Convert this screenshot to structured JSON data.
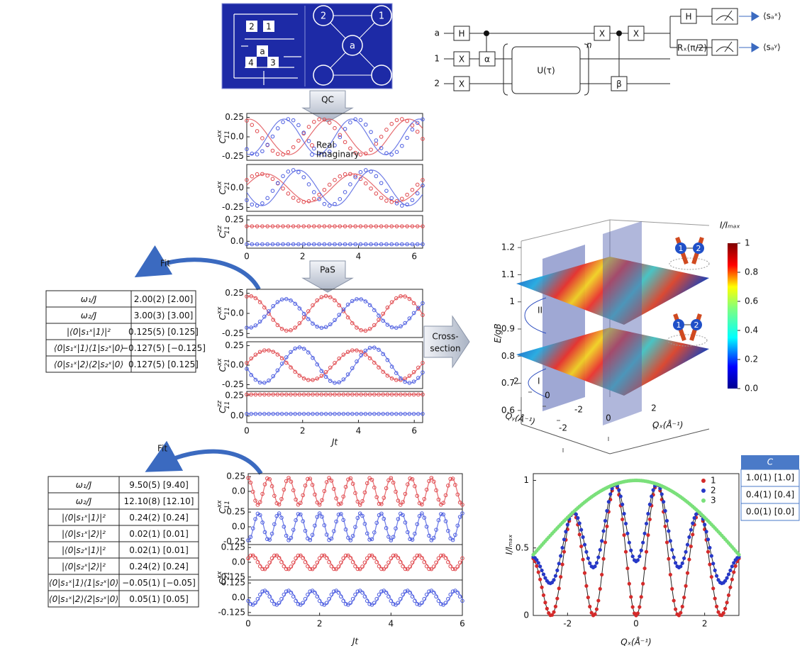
{
  "chip": {
    "labels": [
      "2",
      "1",
      "a",
      "4",
      "3"
    ],
    "graph_nodes": [
      "2",
      "1",
      "a"
    ]
  },
  "circuit": {
    "qubits": [
      "a",
      "1",
      "2"
    ],
    "h": "H",
    "x": "X",
    "alpha": "α",
    "u": "U(τ)",
    "n": "n",
    "beta": "β",
    "rx": "Rₓ(π/2)",
    "outputs": [
      "⟨sₐˣ⟩",
      "⟨sₐʸ⟩"
    ]
  },
  "arrows": {
    "qc": "QC",
    "pas": "PaS",
    "cross": [
      "Cross-",
      "section"
    ],
    "fit1": "Fit",
    "fit2": "Fit"
  },
  "panel_a": {
    "xlim": [
      0,
      6.3
    ],
    "xticks": [
      0,
      2,
      4,
      6
    ],
    "legend": [
      "Real",
      "Imaginary"
    ],
    "plots": [
      {
        "ylabel": {
          "base": "C",
          "sup": "xx",
          "sub": "11"
        },
        "ylim": [
          -0.3,
          0.3
        ],
        "yticks": [
          0.25,
          {
            "value": 0,
            "label": "0.0"
          },
          -0.25
        ]
      },
      {
        "ylabel": {
          "base": "C",
          "sup": "xx",
          "sub": "21"
        },
        "ylim": [
          -0.3,
          0.3
        ],
        "yticks": [
          {
            "value": 0,
            "label": "0.0"
          },
          -0.25
        ]
      },
      {
        "ylabel": {
          "base": "C",
          "sup": "zz",
          "sub": "11"
        },
        "ylim": [
          -0.08,
          0.3
        ],
        "yticks": [
          0.25,
          {
            "value": 0,
            "label": "0.0"
          }
        ]
      }
    ]
  },
  "panel_b": {
    "xlim": [
      0,
      6.3
    ],
    "xticks": [
      0,
      2,
      4,
      6
    ],
    "xlabel": "Jt",
    "plots": [
      {
        "ylabel": {
          "base": "C",
          "sup": "xx",
          "sub": "11"
        },
        "ylim": [
          -0.3,
          0.3
        ],
        "yticks": [
          0.25,
          {
            "value": 0,
            "label": "0.0"
          },
          -0.25
        ]
      },
      {
        "ylabel": {
          "base": "C",
          "sup": "xx",
          "sub": "21"
        },
        "ylim": [
          -0.3,
          0.3
        ],
        "yticks": [
          0.25,
          {
            "value": 0,
            "label": "0.0"
          },
          -0.25
        ]
      },
      {
        "ylabel": {
          "base": "C",
          "sup": "zz",
          "sub": "11"
        },
        "ylim": [
          -0.08,
          0.3
        ],
        "yticks": [
          0.25,
          {
            "value": 0,
            "label": "0.0"
          }
        ]
      }
    ]
  },
  "panel_c": {
    "xlim": [
      0,
      6
    ],
    "xticks": [
      0,
      2,
      4,
      6
    ],
    "xlabel": "Jt",
    "plots": [
      {
        "ylim": [
          -0.3,
          0.3
        ],
        "yticks": [
          0.25,
          {
            "value": 0,
            "label": "0.0"
          }
        ]
      },
      {
        "ylim": [
          -0.3,
          0.3
        ],
        "yticks": [
          0.25,
          {
            "value": 0,
            "label": "0.0"
          },
          -0.25
        ]
      },
      {
        "ylim": [
          -0.15,
          0.15
        ],
        "yticks": [
          0.125,
          {
            "value": 0,
            "label": "0.0"
          },
          -0.125
        ]
      },
      {
        "ylim": [
          -0.15,
          0.15
        ],
        "yticks": [
          0.125,
          {
            "value": 0,
            "label": "0.0"
          },
          -0.125
        ]
      }
    ],
    "ylabels": [
      {
        "base": "C",
        "sup": "xx",
        "sub": "11"
      },
      {
        "base": "C",
        "sup": "xx",
        "sub": "21"
      }
    ]
  },
  "table_1": {
    "rows": [
      [
        "ω₁/J",
        "2.00(2) [2.00]"
      ],
      [
        "ω₂/J",
        "3.00(3) [3.00]"
      ],
      [
        "|⟨0|s₁ˣ|1⟩|²",
        "0.125(5) [0.125]"
      ],
      [
        "⟨0|s₁ˣ|1⟩⟨1|s₂ˣ|0⟩",
        "−0.127(5) [−0.125]"
      ],
      [
        "⟨0|s₁ˣ|2⟩⟨2|s₂ˣ|0⟩",
        "0.127(5) [0.125]"
      ]
    ]
  },
  "table_2": {
    "rows": [
      [
        "ω₁/J",
        "9.50(5) [9.40]"
      ],
      [
        "ω₂/J",
        "12.10(8) [12.10]"
      ],
      [
        "|⟨0|s₁ˣ|1⟩|²",
        "0.24(2) [0.24]"
      ],
      [
        "|⟨0|s₁ˣ|2⟩|²",
        "0.02(1) [0.01]"
      ],
      [
        "|⟨0|s₂ˣ|1⟩|²",
        "0.02(1) [0.01]"
      ],
      [
        "|⟨0|s₂ˣ|2⟩|²",
        "0.24(2) [0.24]"
      ],
      [
        "⟨0|s₁ˣ|1⟩⟨1|s₂ˣ|0⟩",
        "−0.05(1) [−0.05]"
      ],
      [
        "⟨0|s₁ˣ|2⟩⟨2|s₂ˣ|0⟩",
        "0.05(1) [0.05]"
      ]
    ]
  },
  "panel_3d": {
    "zlabel": "E/gB",
    "zlim": [
      0.55,
      1.25
    ],
    "zticks": [
      1.2,
      1.1,
      1,
      0.9,
      0.8,
      0.7,
      0.6
    ],
    "markers": [
      "II",
      "I"
    ],
    "qx_label": "Qₓ(Å⁻¹)",
    "qx_ticks": [
      -2,
      0,
      2
    ],
    "qy_label": "Qᵧ(Å⁻¹)",
    "qy_ticks": [
      2,
      0,
      -2
    ],
    "colorbar": {
      "label": "I/Iₘₐₓ",
      "lim": [
        0,
        1
      ],
      "ticks": [
        1,
        0.8,
        0.6,
        0.4,
        0.2,
        {
          "value": 0,
          "label": "0.0"
        }
      ]
    },
    "spin_labels": [
      "1",
      "2",
      "1",
      "2"
    ]
  },
  "panel_d": {
    "xlabel": "Qₓ(Å⁻¹)",
    "ylabel": "I/Iₘₐₓ",
    "xlim": [
      -3,
      3
    ],
    "ylim": [
      0,
      1.05
    ],
    "xticks": [
      -2,
      0,
      2
    ],
    "yticks": [
      0,
      0.5,
      1
    ],
    "legend": [
      {
        "name": "1",
        "color": "#d42a2a"
      },
      {
        "name": "2",
        "color": "#2638c8"
      },
      {
        "name": "3",
        "color": "#7be07b"
      }
    ]
  },
  "table_c": {
    "header": "C",
    "rows": [
      "1.0(1) [1.0]",
      "0.4(1) [0.4]",
      "0.0(1) [0.0]"
    ]
  }
}
